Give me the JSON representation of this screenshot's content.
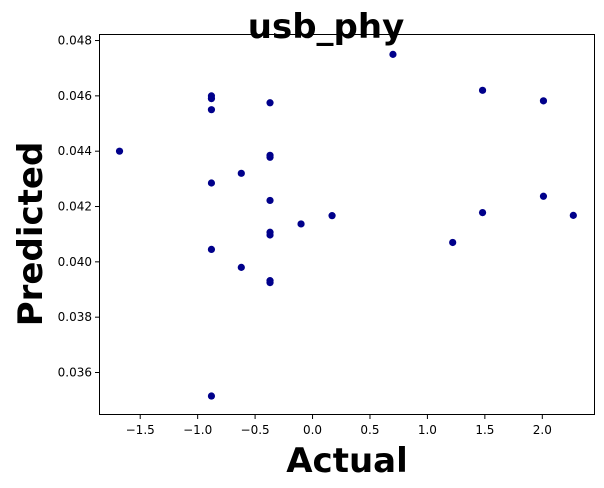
{
  "chart_data": {
    "type": "scatter",
    "title": "usb_phy",
    "xlabel": "Actual",
    "ylabel": "Predicted",
    "xlim": [
      -1.85,
      2.45
    ],
    "ylim": [
      0.0345,
      0.0482
    ],
    "xticks": [
      -1.5,
      -1.0,
      -0.5,
      0.0,
      0.5,
      1.0,
      1.5,
      2.0
    ],
    "xtick_labels": [
      "−1.5",
      "−1.0",
      "−0.5",
      "0.0",
      "0.5",
      "1.0",
      "1.5",
      "2.0"
    ],
    "yticks": [
      0.036,
      0.038,
      0.04,
      0.042,
      0.044,
      0.046,
      0.048
    ],
    "ytick_labels": [
      "0.036",
      "0.038",
      "0.040",
      "0.042",
      "0.044",
      "0.046",
      "0.048"
    ],
    "grid": false,
    "marker_color": "#00008b",
    "points": [
      {
        "x": -1.68,
        "y": 0.044
      },
      {
        "x": -0.88,
        "y": 0.046
      },
      {
        "x": -0.88,
        "y": 0.0459
      },
      {
        "x": -0.88,
        "y": 0.0455
      },
      {
        "x": -0.88,
        "y": 0.04285
      },
      {
        "x": -0.88,
        "y": 0.04045
      },
      {
        "x": -0.88,
        "y": 0.03515
      },
      {
        "x": -0.62,
        "y": 0.0432
      },
      {
        "x": -0.62,
        "y": 0.0398
      },
      {
        "x": -0.37,
        "y": 0.04575
      },
      {
        "x": -0.37,
        "y": 0.04385
      },
      {
        "x": -0.37,
        "y": 0.04378
      },
      {
        "x": -0.37,
        "y": 0.04222
      },
      {
        "x": -0.37,
        "y": 0.04107
      },
      {
        "x": -0.37,
        "y": 0.04097
      },
      {
        "x": -0.37,
        "y": 0.03932
      },
      {
        "x": -0.37,
        "y": 0.03925
      },
      {
        "x": -0.1,
        "y": 0.04137
      },
      {
        "x": 0.17,
        "y": 0.04167
      },
      {
        "x": 0.7,
        "y": 0.0475
      },
      {
        "x": 1.22,
        "y": 0.0407
      },
      {
        "x": 1.48,
        "y": 0.0462
      },
      {
        "x": 1.48,
        "y": 0.04178
      },
      {
        "x": 2.01,
        "y": 0.04582
      },
      {
        "x": 2.01,
        "y": 0.04237
      },
      {
        "x": 2.27,
        "y": 0.04168
      }
    ]
  }
}
